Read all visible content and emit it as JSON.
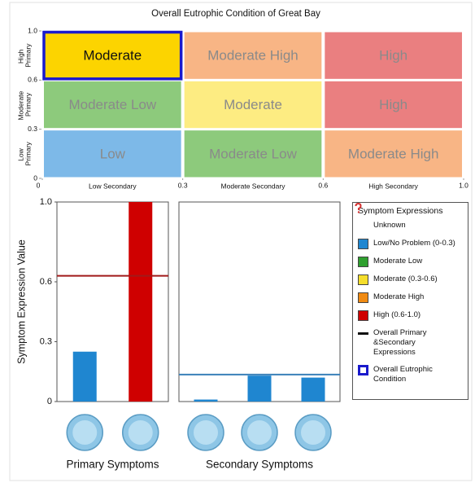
{
  "chart_data": [
    {
      "type": "matrix",
      "title": "Overall Eutrophic Condition of Great Bay",
      "rows": [
        "High Primary",
        "Moderate Primary",
        "Low Primary"
      ],
      "columns": [
        "Low Secondary",
        "Moderate Secondary",
        "High Secondary"
      ],
      "cells": [
        [
          "Moderate",
          "Moderate High",
          "High"
        ],
        [
          "Moderate Low",
          "Moderate",
          "High"
        ],
        [
          "Low",
          "Moderate Low",
          "Moderate High"
        ]
      ],
      "cell_colors": [
        [
          "#fcd400",
          "#f8b585",
          "#ea7f80"
        ],
        [
          "#8dca7c",
          "#fdec82",
          "#ea7f80"
        ],
        [
          "#7db9e8",
          "#8dca7c",
          "#f8b585"
        ]
      ],
      "text_color": "#8a8a8a",
      "highlight_text_color": "#111111",
      "highlight_border": "#1a1acc",
      "xticks": [
        0,
        0.3,
        0.6,
        {
          "value": 1,
          "label": "1.0"
        }
      ],
      "yticks": [
        0,
        0.3,
        0.6,
        {
          "value": 1,
          "label": "1.0"
        }
      ]
    },
    {
      "type": "bar",
      "xlabel": "Primary Symptoms",
      "ylabel": "Symptom Expression Value",
      "categories": [
        null,
        null
      ],
      "values": [
        0.25,
        1.0
      ],
      "colors": [
        "#1f86d0",
        "#cf0000"
      ],
      "overall": 0.63,
      "overall_color": "#a01a1a",
      "ylim": [
        0,
        1
      ],
      "yticks": [
        0,
        0.3,
        0.6,
        {
          "value": 1,
          "label": "1.0"
        }
      ]
    },
    {
      "type": "bar",
      "xlabel": "Secondary Symptoms",
      "categories": [
        null,
        null,
        null
      ],
      "values": [
        0.01,
        0.13,
        0.12
      ],
      "colors": [
        "#1f86d0",
        "#1f86d0",
        "#1f86d0"
      ],
      "overall": 0.135,
      "overall_color": "#3a80b8",
      "ylim": [
        0,
        1
      ]
    }
  ],
  "legend": {
    "title": "Symptom Expressions",
    "items": [
      {
        "label": "Unknown",
        "symbol": "question",
        "color": "#d43030"
      },
      {
        "label": "Low/No Problem (0-0.3)",
        "symbol": "square",
        "color": "#1f86d0"
      },
      {
        "label": "Moderate Low",
        "symbol": "square",
        "color": "#2fa02f"
      },
      {
        "label": "Moderate (0.3-0.6)",
        "symbol": "square",
        "color": "#f5de2c"
      },
      {
        "label": "Moderate High",
        "symbol": "square",
        "color": "#f08a12"
      },
      {
        "label": "High (0.6-1.0)",
        "symbol": "square",
        "color": "#cf0000"
      },
      {
        "label": "Overall Primary &Secondary Expressions",
        "symbol": "line",
        "color": "#111111"
      },
      {
        "label": "Overall Eutrophic Condition",
        "symbol": "box",
        "color": "#1a1acc"
      }
    ]
  }
}
